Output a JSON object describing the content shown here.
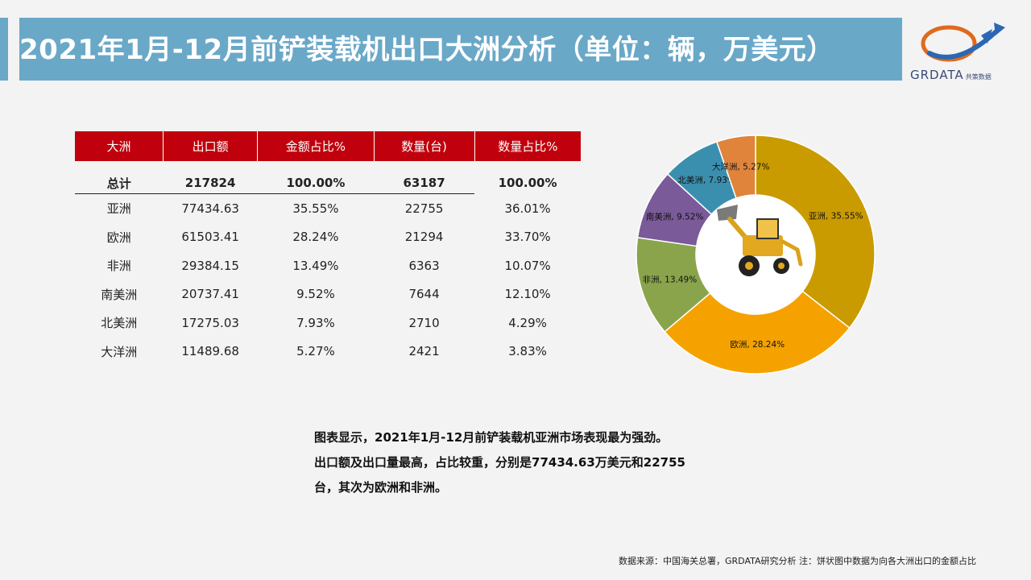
{
  "title": "2021年1月-12月前铲装载机出口大洲分析（单位：辆，万美元）",
  "logo": {
    "text": "GRDATA",
    "cn": "共策数据"
  },
  "table": {
    "headers": [
      "大洲",
      "出口额",
      "金额占比%",
      "数量(台)",
      "数量占比%"
    ],
    "total": [
      "总计",
      "217824",
      "100.00%",
      "63187",
      "100.00%"
    ],
    "rows": [
      [
        "亚洲",
        "77434.63",
        "35.55%",
        "22755",
        "36.01%"
      ],
      [
        "欧洲",
        "61503.41",
        "28.24%",
        "21294",
        "33.70%"
      ],
      [
        "非洲",
        "29384.15",
        "13.49%",
        "6363",
        "10.07%"
      ],
      [
        "南美洲",
        "20737.41",
        "9.52%",
        "7644",
        "12.10%"
      ],
      [
        "北美洲",
        "17275.03",
        "7.93%",
        "2710",
        "4.29%"
      ],
      [
        "大洋洲",
        "11489.68",
        "5.27%",
        "2421",
        "3.83%"
      ]
    ]
  },
  "chart_data": {
    "type": "pie",
    "donut": true,
    "slices": [
      {
        "name": "亚洲",
        "value": 35.55,
        "label": "亚洲, 35.55%",
        "color": "#c99b00"
      },
      {
        "name": "欧洲",
        "value": 28.24,
        "label": "欧洲, 28.24%",
        "color": "#f5a200"
      },
      {
        "name": "非洲",
        "value": 13.49,
        "label": "非洲, 13.49%",
        "color": "#8aa44c"
      },
      {
        "name": "南美洲",
        "value": 9.52,
        "label": "南美洲, 9.52%",
        "color": "#7a5a98"
      },
      {
        "name": "北美洲",
        "value": 7.93,
        "label": "北美洲, 7.93%",
        "color": "#3b8fae"
      },
      {
        "name": "大洋洲",
        "value": 5.27,
        "label": "大洋洲, 5.27%",
        "color": "#e0843c"
      }
    ]
  },
  "summary": {
    "line1": "图表显示，2021年1月-12月前铲装载机亚洲市场表现最为强劲。",
    "line2": "出口额及出口量最高，占比较重，分别是77434.63万美元和22755",
    "line3": "台，其次为欧洲和非洲。"
  },
  "footer": "数据来源：中国海关总署，GRDATA研究分析  注：饼状图中数据为向各大洲出口的金额占比"
}
